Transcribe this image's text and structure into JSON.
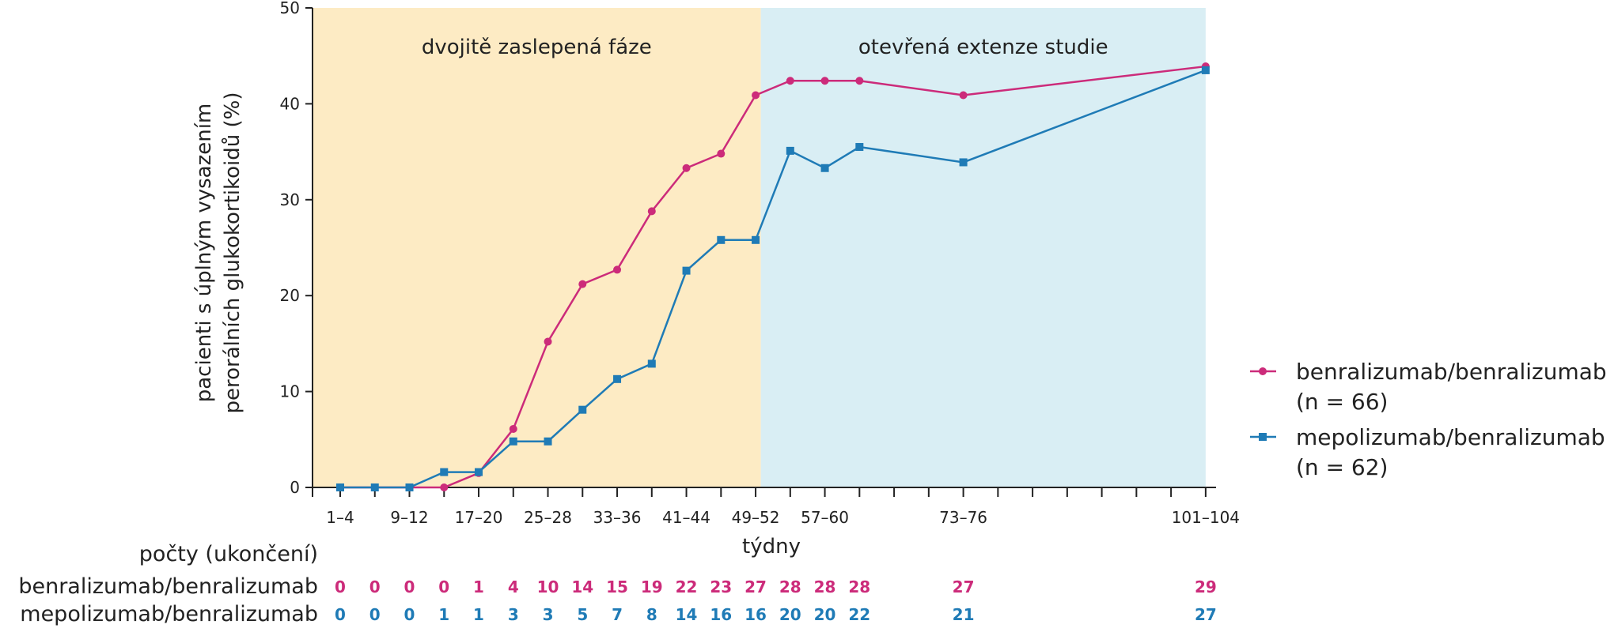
{
  "chart_data": {
    "type": "line",
    "ylabel": [
      "pacienti s úplným vysazením",
      "perorálních glukokortikoidů (%)"
    ],
    "xlabel": "týdny",
    "ylim": [
      0,
      50
    ],
    "yticks": [
      0,
      10,
      20,
      30,
      40,
      50
    ],
    "xticks": [
      {
        "label": "1–4",
        "x": 1
      },
      {
        "label": "9–12",
        "x": 3
      },
      {
        "label": "17–20",
        "x": 5
      },
      {
        "label": "25–28",
        "x": 7
      },
      {
        "label": "33–36",
        "x": 9
      },
      {
        "label": "41–44",
        "x": 11
      },
      {
        "label": "49–52",
        "x": 13
      },
      {
        "label": "57–60",
        "x": 15
      },
      {
        "label": "73–76",
        "x": 19
      },
      {
        "label": "101–104",
        "x": 26
      }
    ],
    "xlim": [
      0.2,
      26.3
    ],
    "minor_ticks": [
      0.2,
      1,
      2,
      3,
      4,
      5,
      6,
      7,
      8,
      9,
      10,
      11,
      12,
      13,
      14,
      15,
      16,
      17,
      18,
      19,
      20,
      21,
      22,
      23,
      24,
      25,
      26
    ],
    "phases": [
      {
        "label": "dvojitě zaslepená fáze",
        "x_start": 0.2,
        "x_end": 13.15,
        "color": "#fdebc4"
      },
      {
        "label": "otevřená extenze studie",
        "x_start": 13.15,
        "x_end": 26.0,
        "color": "#d9eef4"
      }
    ],
    "x": [
      1,
      2,
      3,
      4,
      5,
      6,
      7,
      8,
      9,
      10,
      11,
      12,
      13,
      14,
      15,
      16,
      19,
      26
    ],
    "series": [
      {
        "name": "benralizumab/benralizumab",
        "n_label": "(n = 66)",
        "color": "#cc2b7a",
        "marker": "circle",
        "values": [
          0,
          0,
          0,
          0,
          1.5,
          6.1,
          15.2,
          21.2,
          22.7,
          28.8,
          33.3,
          34.8,
          40.9,
          42.4,
          42.4,
          42.4,
          40.9,
          43.9
        ]
      },
      {
        "name": "mepolizumab/benralizumab",
        "n_label": "(n = 62)",
        "color": "#1f7bb6",
        "marker": "square",
        "values": [
          0,
          0,
          0,
          1.6,
          1.6,
          4.8,
          4.8,
          8.1,
          11.3,
          12.9,
          22.6,
          25.8,
          25.8,
          35.1,
          33.3,
          35.5,
          33.9,
          43.5
        ]
      }
    ]
  },
  "counts_table": {
    "title": "počty (ukončení)",
    "rows": [
      {
        "label": "benralizumab/benralizumab",
        "color": "#cc2b7a",
        "values": [
          "0",
          "0",
          "0",
          "0",
          "1",
          "4",
          "10",
          "14",
          "15",
          "19",
          "22",
          "23",
          "27",
          "28",
          "28",
          "28",
          "27",
          "29"
        ]
      },
      {
        "label": "mepolizumab/benralizumab",
        "color": "#1f7bb6",
        "values": [
          "0",
          "0",
          "0",
          "1",
          "1",
          "3",
          "3",
          "5",
          "7",
          "8",
          "14",
          "16",
          "16",
          "20",
          "20",
          "22",
          "21",
          "27"
        ]
      }
    ]
  }
}
